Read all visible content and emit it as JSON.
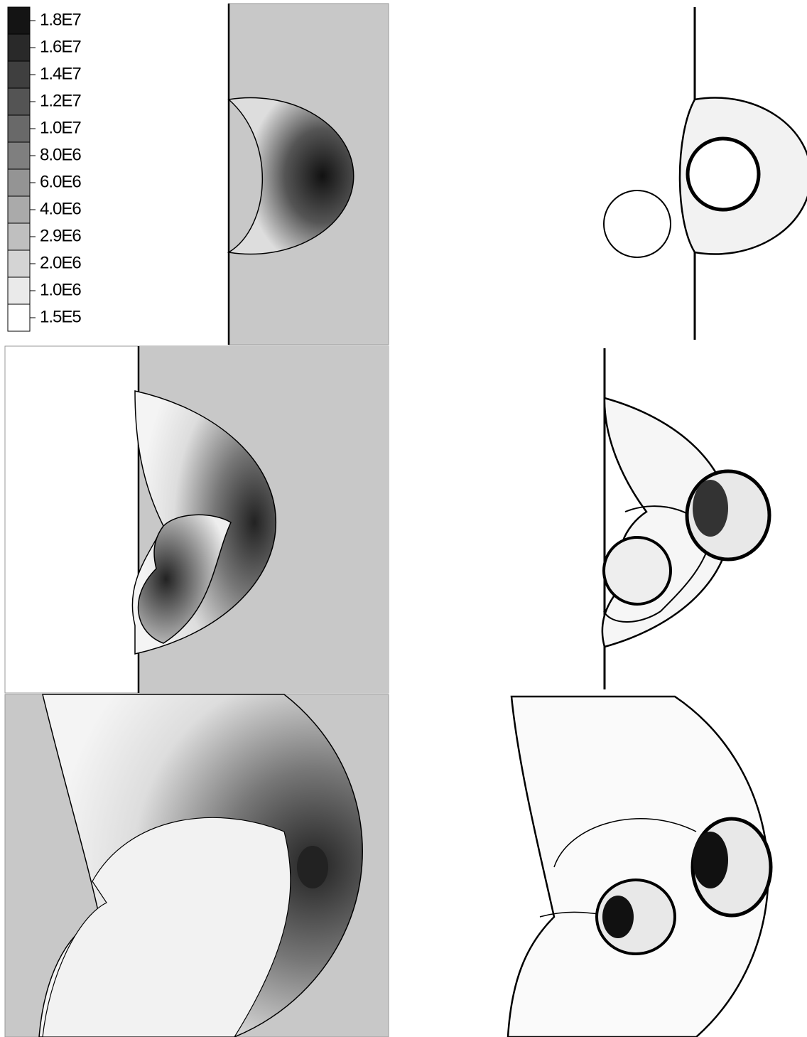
{
  "legend": {
    "labels": [
      "1.8E7",
      "1.6E7",
      "1.4E7",
      "1.2E7",
      "1.0E7",
      "8.0E6",
      "6.0E6",
      "4.0E6",
      "2.9E6",
      "2.0E6",
      "1.0E6",
      "1.5E5"
    ]
  }
}
